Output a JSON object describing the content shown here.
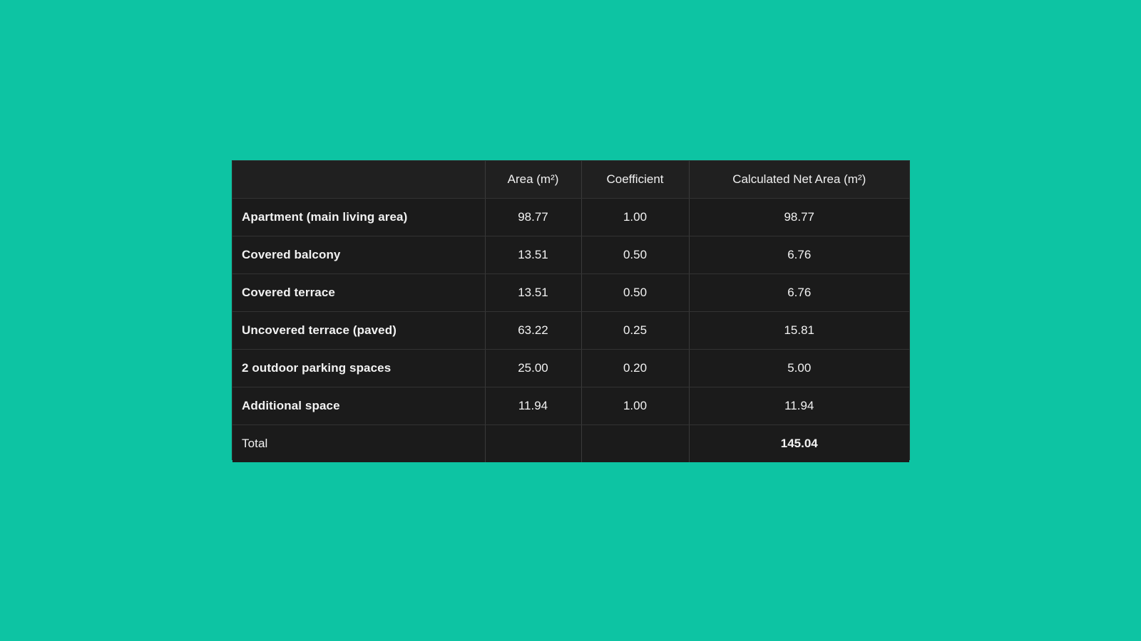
{
  "colors": {
    "background": "#0dc4a3",
    "table_background": "#1b1b1b",
    "header_background": "#202020",
    "text": "#f2f2f2",
    "grid": "#3a3a3a"
  },
  "table": {
    "headers": [
      "",
      "Area (m²)",
      "Coefficient",
      "Calculated Net Area (m²)"
    ],
    "rows": [
      {
        "label": "Apartment (main living area)",
        "area": "98.77",
        "coefficient": "1.00",
        "net_area": "98.77"
      },
      {
        "label": "Covered balcony",
        "area": "13.51",
        "coefficient": "0.50",
        "net_area": "6.76"
      },
      {
        "label": "Covered terrace",
        "area": "13.51",
        "coefficient": "0.50",
        "net_area": "6.76"
      },
      {
        "label": "Uncovered terrace (paved)",
        "area": "63.22",
        "coefficient": "0.25",
        "net_area": "15.81"
      },
      {
        "label": "2 outdoor parking spaces",
        "area": "25.00",
        "coefficient": "0.20",
        "net_area": "5.00"
      },
      {
        "label": "Additional space",
        "area": "11.94",
        "coefficient": "1.00",
        "net_area": "11.94"
      }
    ],
    "total": {
      "label": "Total",
      "area": "",
      "coefficient": "",
      "net_area": "145.04"
    }
  }
}
